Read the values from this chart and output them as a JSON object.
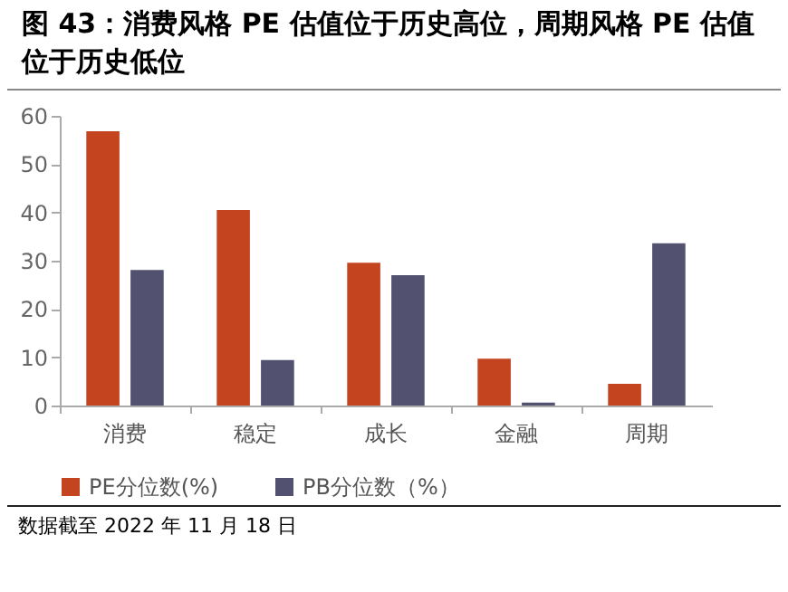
{
  "chart_data": {
    "type": "bar",
    "title": "图 43：消费风格 PE 估值位于历史高位，周期风格 PE 估值位于历史低位",
    "categories": [
      "消费",
      "稳定",
      "成长",
      "金融",
      "周期"
    ],
    "series": [
      {
        "name": "PE分位数(%)",
        "color": "#c4441f",
        "values": [
          56.8,
          40.5,
          29.6,
          9.7,
          4.5
        ]
      },
      {
        "name": "PB分位数（%）",
        "color": "#52516f",
        "values": [
          28.1,
          9.4,
          27.0,
          0.6,
          33.6
        ]
      }
    ],
    "ylim": [
      0,
      60
    ],
    "yticks": [
      0,
      10,
      20,
      30,
      40,
      50,
      60
    ],
    "grid": false,
    "legend": "bottom",
    "annotations": [
      "数据截至 2022 年 11 月 18 日"
    ]
  }
}
